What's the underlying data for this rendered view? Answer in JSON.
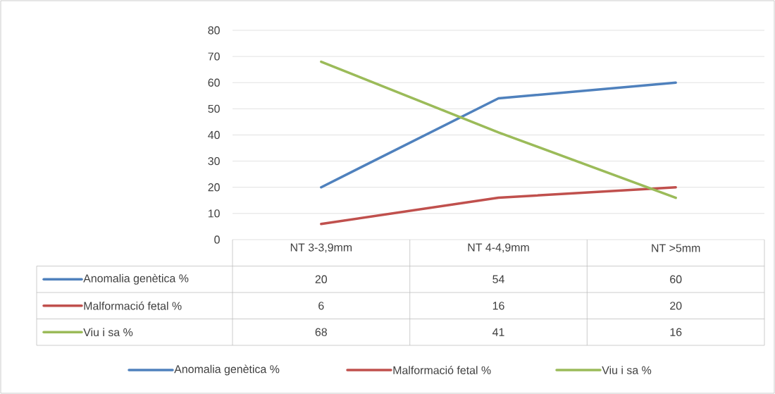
{
  "chart_data": {
    "type": "line",
    "categories": [
      "NT 3-3,9mm",
      "NT 4-4,9mm",
      "NT >5mm"
    ],
    "series": [
      {
        "name": "Anomalia genètica %",
        "color": "#4f81bd",
        "values": [
          20,
          54,
          60
        ]
      },
      {
        "name": "Malformació fetal %",
        "color": "#c0504d",
        "values": [
          6,
          16,
          20
        ]
      },
      {
        "name": "Viu i sa %",
        "color": "#9bbb59",
        "values": [
          68,
          41,
          16
        ]
      }
    ],
    "ylim": [
      0,
      80
    ],
    "yticks": [
      0,
      10,
      20,
      30,
      40,
      50,
      60,
      70,
      80
    ],
    "grid": "y",
    "legend": "bottom",
    "data_labels": true
  }
}
